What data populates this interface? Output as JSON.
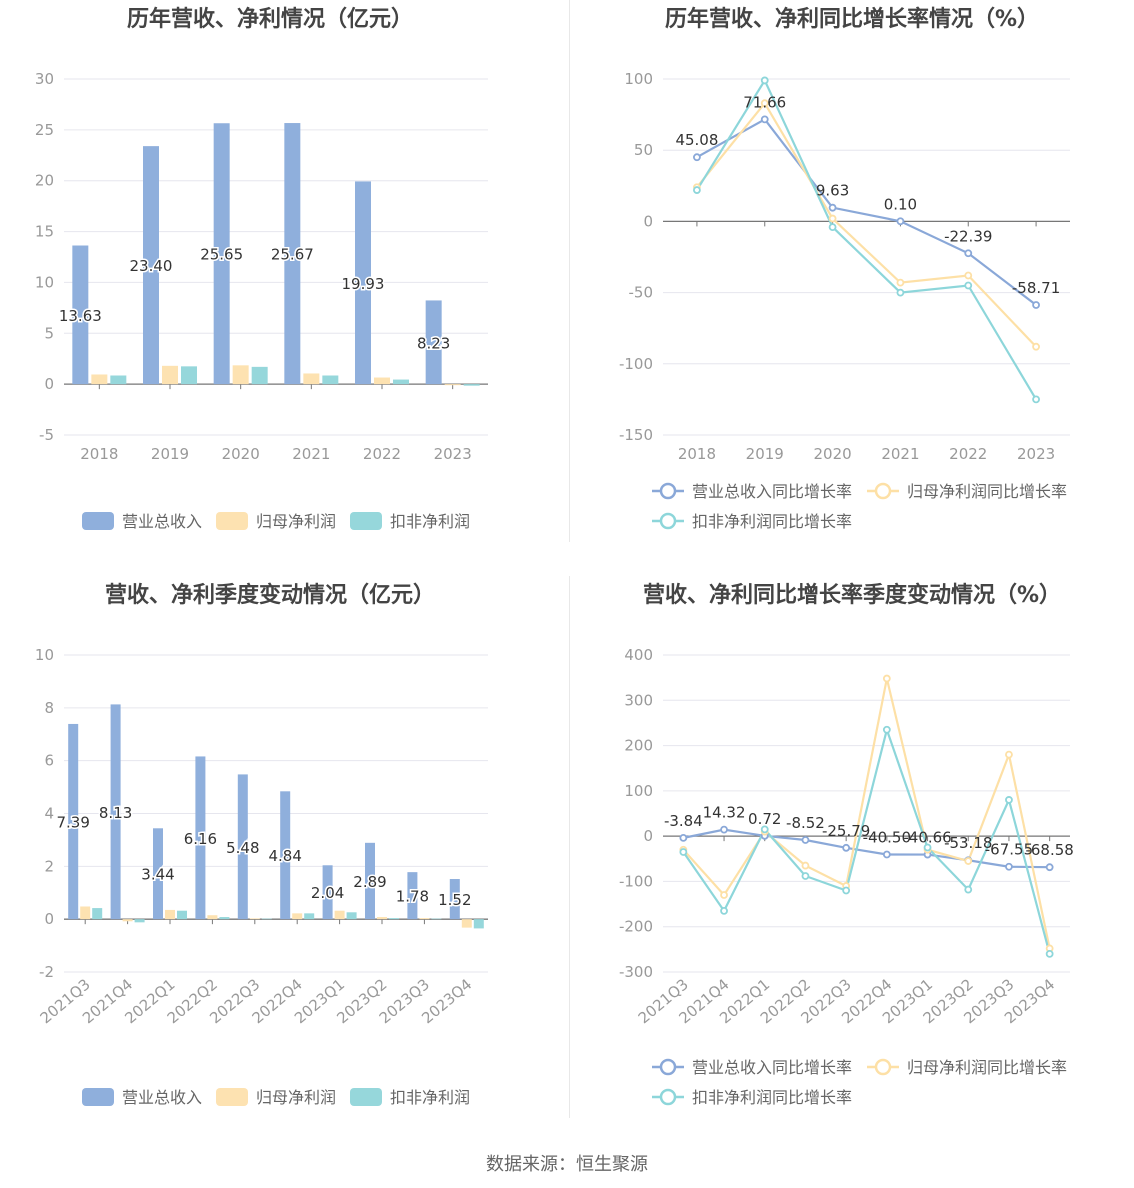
{
  "source_note": "数据来源：恒生聚源",
  "colors": {
    "revenue": "#8fafdc",
    "net_profit": "#fde2b1",
    "deducted_net_profit": "#96d7db",
    "revenue_line": "#8aa8d8",
    "net_line": "#fde0a6",
    "deducted_line": "#8dd6da"
  },
  "chart_data": [
    {
      "type": "bar",
      "title": "历年营收、净利情况（亿元）",
      "categories": [
        "2018",
        "2019",
        "2020",
        "2021",
        "2022",
        "2023"
      ],
      "ylim": [
        -5,
        30
      ],
      "yticks": [
        -5,
        0,
        5,
        10,
        15,
        20,
        25,
        30
      ],
      "grid": true,
      "legend_position": "bottom",
      "series": [
        {
          "name": "营业总收入",
          "values": [
            13.63,
            23.4,
            25.65,
            25.67,
            19.93,
            8.23
          ],
          "labels": [
            "13.63",
            "23.40",
            "25.65",
            "25.67",
            "19.93",
            "8.23"
          ]
        },
        {
          "name": "归母净利润",
          "values": [
            0.95,
            1.8,
            1.85,
            1.05,
            0.65,
            -0.1
          ]
        },
        {
          "name": "扣非净利润",
          "values": [
            0.85,
            1.75,
            1.7,
            0.85,
            0.45,
            -0.15
          ]
        }
      ]
    },
    {
      "type": "line",
      "title": "历年营收、净利同比增长率情况（%）",
      "categories": [
        "2018",
        "2019",
        "2020",
        "2021",
        "2022",
        "2023"
      ],
      "ylim": [
        -150,
        100
      ],
      "yticks": [
        -150,
        -100,
        -50,
        0,
        50,
        100
      ],
      "grid": true,
      "legend_position": "bottom",
      "series": [
        {
          "name": "营业总收入同比增长率",
          "values": [
            45.08,
            71.66,
            9.63,
            0.1,
            -22.39,
            -58.71
          ],
          "labels": [
            "45.08",
            "71.66",
            "9.63",
            "0.10",
            "-22.39",
            "-58.71"
          ]
        },
        {
          "name": "归母净利润同比增长率",
          "values": [
            24,
            83,
            2,
            -43,
            -38,
            -88
          ]
        },
        {
          "name": "扣非净利润同比增长率",
          "values": [
            22,
            99,
            -4,
            -50,
            -45,
            -125
          ]
        }
      ]
    },
    {
      "type": "bar",
      "title": "营收、净利季度变动情况（亿元）",
      "categories": [
        "2021Q3",
        "2021Q4",
        "2022Q1",
        "2022Q2",
        "2022Q3",
        "2022Q4",
        "2023Q1",
        "2023Q2",
        "2023Q3",
        "2023Q4"
      ],
      "ylim": [
        -2,
        10
      ],
      "yticks": [
        -2,
        0,
        2,
        4,
        6,
        8,
        10
      ],
      "grid": true,
      "legend_position": "bottom",
      "series": [
        {
          "name": "营业总收入",
          "values": [
            7.39,
            8.13,
            3.44,
            6.16,
            5.48,
            4.84,
            2.04,
            2.89,
            1.78,
            1.52
          ],
          "labels": [
            "7.39",
            "8.13",
            "3.44",
            "6.16",
            "5.48",
            "4.84",
            "2.04",
            "2.89",
            "1.78",
            "1.52"
          ]
        },
        {
          "name": "归母净利润",
          "values": [
            0.48,
            -0.08,
            0.35,
            0.15,
            0.03,
            0.22,
            0.32,
            0.08,
            0.04,
            -0.32
          ]
        },
        {
          "name": "扣非净利润",
          "values": [
            0.42,
            -0.12,
            0.32,
            0.08,
            0.02,
            0.22,
            0.26,
            0.04,
            0.02,
            -0.35
          ]
        }
      ]
    },
    {
      "type": "line",
      "title": "营收、净利同比增长率季度变动情况（%）",
      "categories": [
        "2021Q3",
        "2021Q4",
        "2022Q1",
        "2022Q2",
        "2022Q3",
        "2022Q4",
        "2023Q1",
        "2023Q2",
        "2023Q3",
        "2023Q4"
      ],
      "ylim": [
        -300,
        400
      ],
      "yticks": [
        -300,
        -200,
        -100,
        0,
        100,
        200,
        300,
        400
      ],
      "grid": true,
      "legend_position": "bottom",
      "series": [
        {
          "name": "营业总收入同比增长率",
          "values": [
            -3.84,
            14.32,
            0.72,
            -8.52,
            -25.79,
            -40.5,
            -40.66,
            -53.18,
            -67.55,
            -68.58
          ],
          "labels": [
            "-3.84",
            "14.32",
            "0.72",
            "-8.52",
            "-25.79",
            "-40.50",
            "-40.66",
            "-53.18",
            "-67.55",
            "-68.58"
          ]
        },
        {
          "name": "归母净利润同比增长率",
          "values": [
            -30,
            -130,
            10,
            -65,
            -110,
            348,
            -30,
            -55,
            180,
            -248
          ]
        },
        {
          "name": "扣非净利润同比增长率",
          "values": [
            -35,
            -165,
            15,
            -88,
            -120,
            235,
            -25,
            -118,
            80,
            -260
          ]
        }
      ]
    }
  ]
}
